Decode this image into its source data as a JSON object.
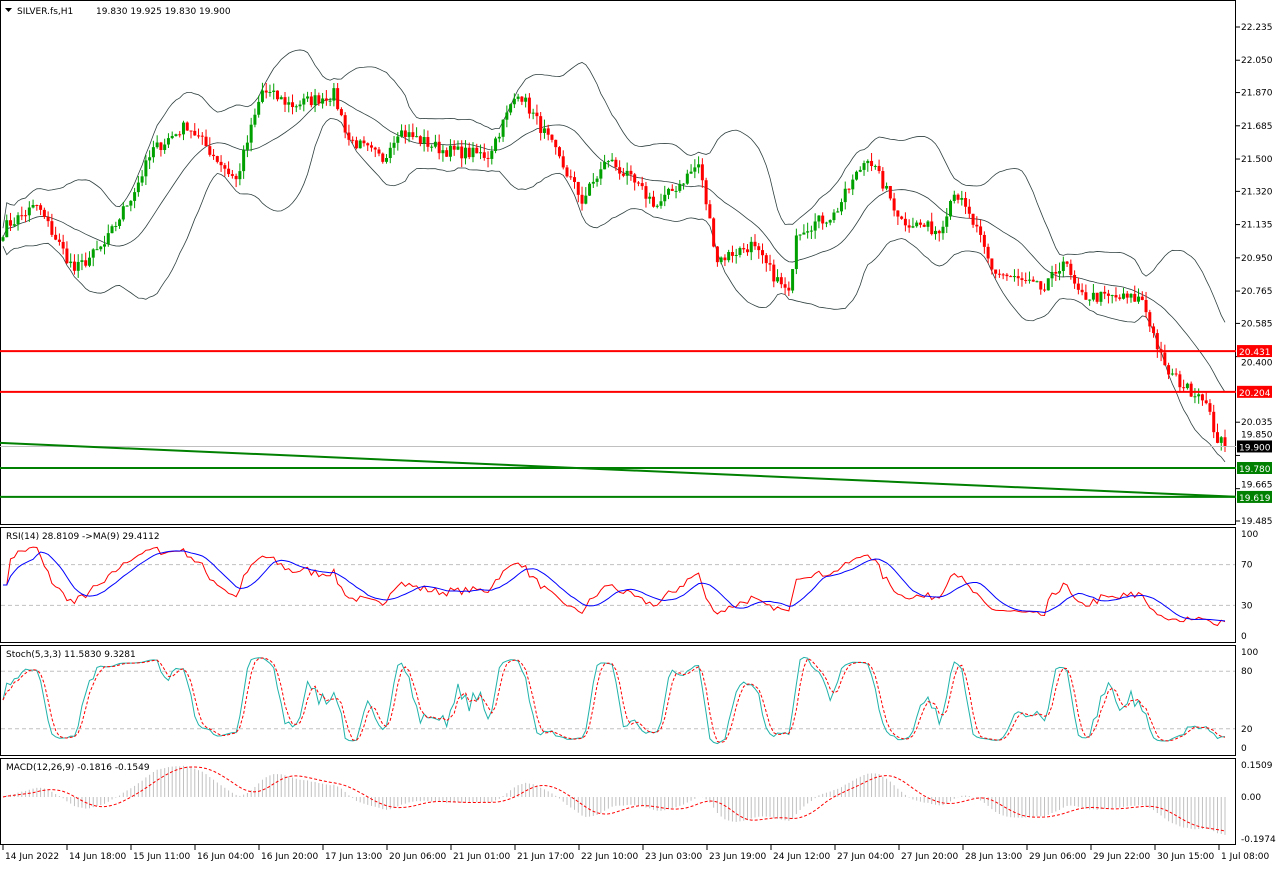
{
  "header": {
    "symbol": "SILVER.fs,H1",
    "ohlc": "19.830 19.925 19.830 19.900",
    "menu_icon": "triangle-down-icon"
  },
  "colors": {
    "bull": "#00a000",
    "bear": "#ff0000",
    "support": "#008000",
    "resistance": "#ff0000",
    "rsi": "#ff0000",
    "rsi_ma": "#0000ff",
    "stoch_k": "#20b2aa",
    "stoch_d": "#ff0000",
    "macd_hist": "#c0c0c0",
    "macd_signal": "#ff0000"
  },
  "price_axis": {
    "ticks": [
      "22.235",
      "22.050",
      "21.870",
      "21.685",
      "21.500",
      "21.320",
      "21.135",
      "20.950",
      "20.765",
      "20.585",
      "20.400",
      "20.035",
      "19.850",
      "19.665",
      "19.485"
    ],
    "min": 19.485,
    "max": 22.235
  },
  "levels": [
    {
      "label": "20.431",
      "value": 20.431,
      "kind": "resistance"
    },
    {
      "label": "20.204",
      "value": 20.204,
      "kind": "resistance"
    },
    {
      "label": "19.780",
      "value": 19.78,
      "kind": "support"
    },
    {
      "label": "19.619",
      "value": 19.619,
      "kind": "support"
    }
  ],
  "current_price": {
    "label": "19.900",
    "value": 19.9
  },
  "trendline": {
    "from": 19.92,
    "to": 19.62
  },
  "chart_data": {
    "type": "candlestick",
    "bars": 326,
    "close_path": [
      [
        0,
        21.1
      ],
      [
        1,
        21.13
      ],
      [
        9,
        21.24
      ],
      [
        19,
        20.88
      ],
      [
        27,
        21.02
      ],
      [
        35,
        21.33
      ],
      [
        40,
        21.55
      ],
      [
        49,
        21.69
      ],
      [
        62,
        21.38
      ],
      [
        69,
        21.88
      ],
      [
        77,
        21.8
      ],
      [
        88,
        21.86
      ],
      [
        92,
        21.61
      ],
      [
        101,
        21.5
      ],
      [
        105,
        21.66
      ],
      [
        117,
        21.55
      ],
      [
        129,
        21.52
      ],
      [
        137,
        21.88
      ],
      [
        145,
        21.61
      ],
      [
        154,
        21.27
      ],
      [
        161,
        21.5
      ],
      [
        174,
        21.24
      ],
      [
        185,
        21.47
      ],
      [
        190,
        20.94
      ],
      [
        199,
        21.02
      ],
      [
        209,
        20.74
      ],
      [
        211,
        21.1
      ],
      [
        221,
        21.19
      ],
      [
        230,
        21.52
      ],
      [
        239,
        21.16
      ],
      [
        249,
        21.1
      ],
      [
        253,
        21.33
      ],
      [
        259,
        21.1
      ],
      [
        263,
        20.88
      ],
      [
        277,
        20.77
      ],
      [
        282,
        20.94
      ],
      [
        286,
        20.74
      ],
      [
        293,
        20.73
      ],
      [
        303,
        20.72
      ],
      [
        309,
        20.33
      ],
      [
        315,
        20.22
      ],
      [
        319,
        20.19
      ],
      [
        323,
        19.94
      ],
      [
        325,
        19.9
      ]
    ]
  },
  "time_axis": [
    "14 Jun 2022",
    "14 Jun 18:00",
    "15 Jun 11:00",
    "16 Jun 04:00",
    "16 Jun 20:00",
    "17 Jun 13:00",
    "20 Jun 06:00",
    "21 Jun 01:00",
    "21 Jun 17:00",
    "22 Jun 10:00",
    "23 Jun 03:00",
    "23 Jun 19:00",
    "24 Jun 12:00",
    "27 Jun 04:00",
    "27 Jun 20:00",
    "28 Jun 13:00",
    "29 Jun 06:00",
    "29 Jun 22:00",
    "30 Jun 15:00",
    "1 Jul 08:00"
  ],
  "rsi": {
    "title": "RSI(14) 28.8109  ->MA(9) 29.4112",
    "ticks": [
      "100",
      "70",
      "30",
      "0"
    ]
  },
  "stoch": {
    "title": "Stoch(5,3,3) 11.5830 9.3281",
    "ticks": [
      "100",
      "80",
      "20",
      "0"
    ]
  },
  "macd": {
    "title": "MACD(12,26,9) -0.1816 -0.1549",
    "ticks": [
      "0.1509",
      "0.00",
      "-0.1974"
    ],
    "max": 0.1509,
    "min": -0.1974
  }
}
